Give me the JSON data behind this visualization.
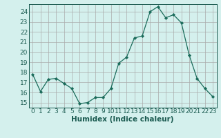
{
  "x": [
    0,
    1,
    2,
    3,
    4,
    5,
    6,
    7,
    8,
    9,
    10,
    11,
    12,
    13,
    14,
    15,
    16,
    17,
    18,
    19,
    20,
    21,
    22,
    23
  ],
  "y": [
    17.8,
    16.1,
    17.3,
    17.4,
    16.9,
    16.4,
    14.9,
    15.0,
    15.5,
    15.5,
    16.4,
    18.9,
    19.5,
    21.4,
    21.6,
    24.0,
    24.5,
    23.4,
    23.7,
    22.9,
    19.7,
    17.4,
    16.4,
    15.6
  ],
  "line_color": "#1a6b5a",
  "marker_color": "#1a6b5a",
  "bg_color": "#d4f0ed",
  "plot_bg_color": "#d4f0ed",
  "grid_color": "#aaaaaa",
  "xlabel": "Humidex (Indice chaleur)",
  "ylim": [
    14.5,
    24.75
  ],
  "xlim": [
    -0.5,
    23.5
  ],
  "yticks": [
    15,
    16,
    17,
    18,
    19,
    20,
    21,
    22,
    23,
    24
  ],
  "xticks": [
    0,
    1,
    2,
    3,
    4,
    5,
    6,
    7,
    8,
    9,
    10,
    11,
    12,
    13,
    14,
    15,
    16,
    17,
    18,
    19,
    20,
    21,
    22,
    23
  ],
  "font_color": "#1a5a50",
  "font_size": 6.5,
  "xlabel_fontsize": 7.5
}
